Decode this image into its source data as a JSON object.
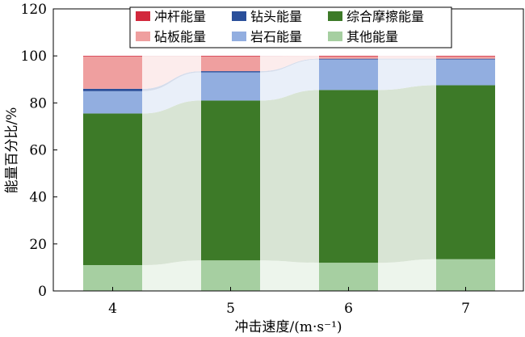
{
  "chart_data": {
    "type": "bar",
    "stacked": true,
    "xlabel": "冲击速度/(m·s⁻¹)",
    "ylabel": "能量百分比/%",
    "categories": [
      "4",
      "5",
      "6",
      "7"
    ],
    "ylim": [
      0,
      120
    ],
    "yticks": [
      0,
      20,
      40,
      60,
      80,
      100,
      120
    ],
    "legend_position": "top-right",
    "grid": false,
    "series": [
      {
        "name": "其他能量",
        "color": "#a6cfa1",
        "values": [
          11.0,
          13.0,
          12.0,
          13.5
        ]
      },
      {
        "name": "综合摩擦能量",
        "color": "#3d7a28",
        "values": [
          64.5,
          68.0,
          73.5,
          74.0
        ]
      },
      {
        "name": "岩石能量",
        "color": "#92aee0",
        "values": [
          9.5,
          12.0,
          13.0,
          11.0
        ]
      },
      {
        "name": "钻头能量",
        "color": "#2a4f9a",
        "values": [
          1.0,
          0.5,
          0.3,
          0.3
        ]
      },
      {
        "name": "砧板能量",
        "color": "#ef9f9f",
        "values": [
          13.8,
          6.3,
          1.1,
          1.1
        ]
      },
      {
        "name": "冲杆能量",
        "color": "#d2283c",
        "values": [
          0.2,
          0.2,
          0.1,
          0.1
        ]
      }
    ],
    "legend_order": [
      "冲杆能量",
      "钻头能量",
      "综合摩擦能量",
      "砧板能量",
      "岩石能量",
      "其他能量"
    ]
  }
}
